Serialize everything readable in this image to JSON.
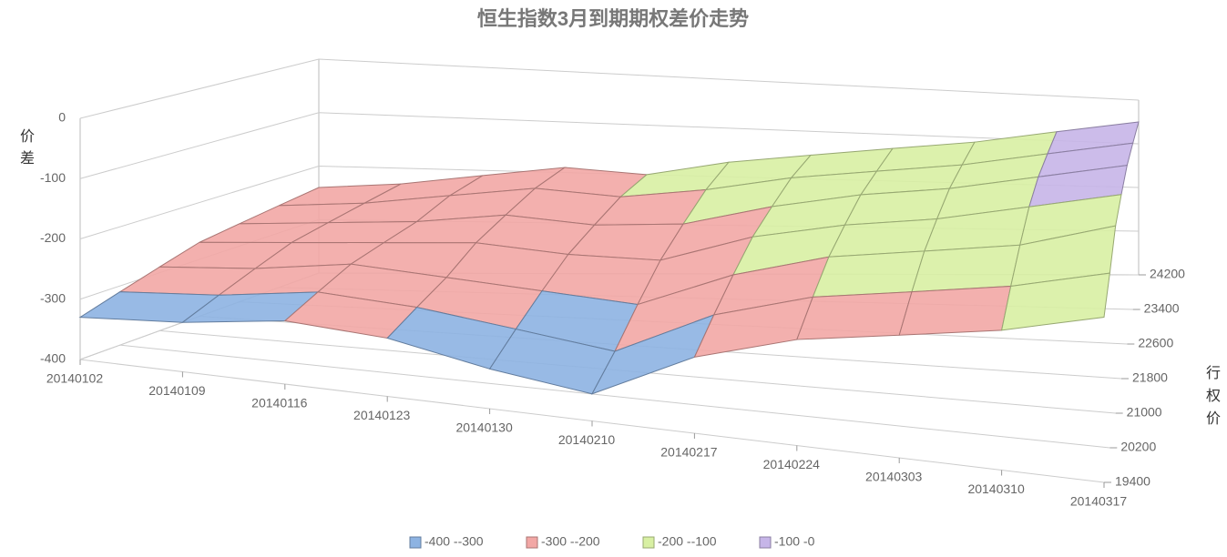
{
  "chart_data": {
    "type": "surface",
    "title": "恒生指数3月到期期权差价走势",
    "z_label": "价差",
    "y_label": "行权价",
    "x": [
      "20140102",
      "20140109",
      "20140116",
      "20140123",
      "20140130",
      "20140210",
      "20140217",
      "20140224",
      "20140303",
      "20140310",
      "20140317"
    ],
    "y": [
      19400,
      20200,
      21000,
      21800,
      22600,
      23400,
      24200
    ],
    "ylim": [
      19400,
      24200
    ],
    "yticks": [
      19400,
      20200,
      21000,
      21800,
      22600,
      23400,
      24200
    ],
    "zlim": [
      -400,
      0
    ],
    "zticks": [
      -400,
      -300,
      -200,
      -100,
      0
    ],
    "values": [
      [
        -330,
        -310,
        -290,
        -270,
        -260,
        -250,
        -240
      ],
      [
        -320,
        -300,
        -280,
        -260,
        -250,
        -240,
        -230
      ],
      [
        -300,
        -280,
        -260,
        -250,
        -240,
        -220,
        -210
      ],
      [
        -310,
        -290,
        -270,
        -240,
        -220,
        -200,
        -190
      ],
      [
        -340,
        -310,
        -280,
        -250,
        -230,
        -210,
        -200
      ],
      [
        -360,
        -330,
        -290,
        -250,
        -220,
        -190,
        -170
      ],
      [
        -290,
        -260,
        -230,
        -200,
        -180,
        -160,
        -150
      ],
      [
        -250,
        -220,
        -190,
        -170,
        -150,
        -140,
        -130
      ],
      [
        -230,
        -200,
        -170,
        -150,
        -130,
        -120,
        -110
      ],
      [
        -210,
        -180,
        -150,
        -120,
        -100,
        -90,
        -80
      ],
      [
        -180,
        -150,
        -110,
        -90,
        -70,
        -60,
        -50
      ]
    ],
    "series": [
      {
        "name": "-400 --300",
        "color": "#8db3e2"
      },
      {
        "name": "-300 --200",
        "color": "#f2a7a5"
      },
      {
        "name": "-200 --100",
        "color": "#d8f0a3"
      },
      {
        "name": "-100 -0",
        "color": "#c6b5e8"
      }
    ],
    "grid": true
  }
}
